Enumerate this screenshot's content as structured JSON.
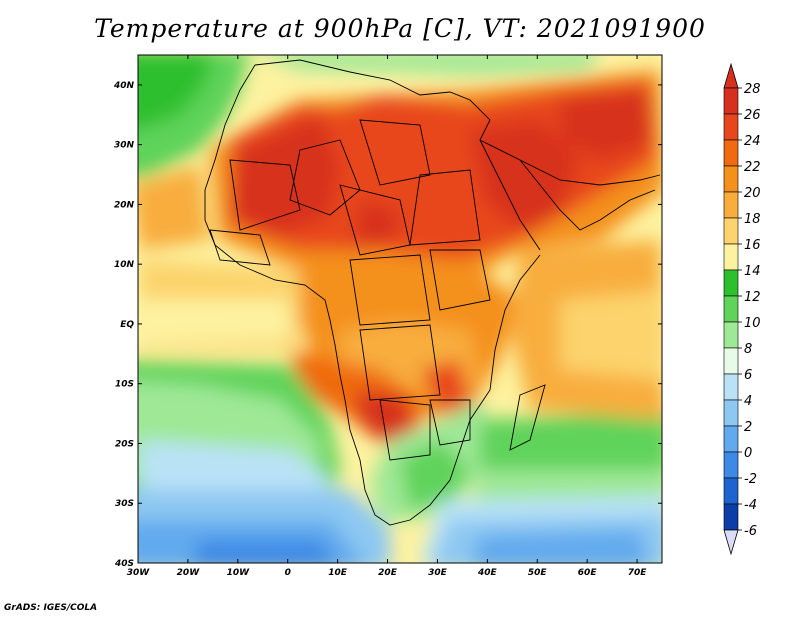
{
  "title": "Temperature at 900hPa [C], VT: 2021091900",
  "credit": "GrADS: IGES/COLA",
  "map": {
    "lon_range": [
      -30,
      75
    ],
    "lat_range": [
      -40,
      45
    ],
    "lat_ticks": [
      "40N",
      "30N",
      "20N",
      "10N",
      "EQ",
      "10S",
      "20S",
      "30S",
      "40S"
    ],
    "lon_ticks": [
      "30W",
      "20W",
      "10W",
      "0",
      "10E",
      "20E",
      "30E",
      "40E",
      "50E",
      "60E",
      "70E"
    ],
    "colorbar": {
      "labels": [
        "28",
        "26",
        "24",
        "22",
        "20",
        "18",
        "16",
        "14",
        "12",
        "10",
        "8",
        "6",
        "4",
        "2",
        "0",
        "-2",
        "-4",
        "-6"
      ],
      "colors": [
        "#d7301f",
        "#e8461c",
        "#f06a10",
        "#f4901c",
        "#f8ad3c",
        "#fcd36c",
        "#fdf2a0",
        "#2dbf2d",
        "#5fd35a",
        "#9fe896",
        "#e8fbe8",
        "#b9e2f6",
        "#8dc8f2",
        "#62aaee",
        "#3c8ae6",
        "#1e64d0",
        "#0c3ea8",
        "#0a2070"
      ]
    }
  }
}
